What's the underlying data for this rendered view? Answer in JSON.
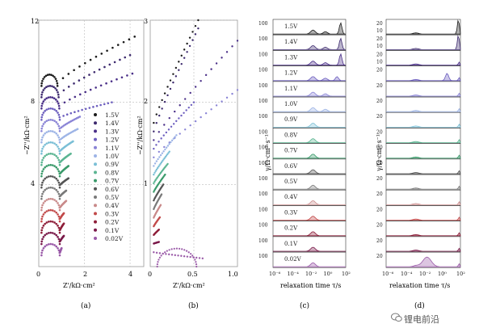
{
  "voltages": [
    "1.5V",
    "1.4V",
    "1.3V",
    "1.2V",
    "1.1V",
    "1.0V",
    "0.9V",
    "0.8V",
    "0.7V",
    "0.6V",
    "0.5V",
    "0.4V",
    "0.3V",
    "0.2V",
    "0.1V",
    "0.02V"
  ],
  "colors": [
    "#1b1b1b",
    "#3d2a6e",
    "#4a2f88",
    "#6d5fbf",
    "#8a84d6",
    "#9db4e6",
    "#7bbfd6",
    "#5bb592",
    "#3a9a6a",
    "#555555",
    "#7a7a7a",
    "#c98a8a",
    "#c24a4a",
    "#8e1f3a",
    "#7a1a4a",
    "#9a5aa8"
  ],
  "panels": {
    "a": {
      "label": "(a)",
      "xlabel": "Z'/kΩ·cm²",
      "ylabel": "−Z''/kΩ·cm²",
      "xticks": [
        "0",
        "2",
        "4"
      ],
      "yticks": [
        "4",
        "8",
        "12"
      ],
      "xlim": [
        0,
        4.6
      ],
      "ylim": [
        0,
        12
      ]
    },
    "b": {
      "label": "(b)",
      "xlabel": "Z'/kΩ·cm²",
      "ylabel": "−Z''/kΩ·cm²",
      "xticks": [
        "0",
        "0.5",
        "1.0"
      ],
      "yticks": [
        "1",
        "2",
        "3"
      ],
      "xlim": [
        0,
        1.0
      ],
      "ylim": [
        0,
        3
      ]
    },
    "c": {
      "label": "(c)",
      "xlabel": "relaxation time τ/s",
      "ylabel": "γ/Ω·cm²·s⁻¹",
      "xticks": [
        "10⁻⁶",
        "10⁻⁴",
        "10⁻²",
        "10⁰",
        "10²"
      ],
      "ytick": "100"
    },
    "d": {
      "label": "(d)",
      "xlabel": "relaxation time τ/s",
      "ylabel": "γ/Ω·cm²·s⁻¹",
      "xticks": [
        "10⁻⁶",
        "10⁻⁴",
        "10⁻²",
        "10⁰",
        "10²"
      ],
      "yticks": [
        "20",
        "10"
      ]
    }
  },
  "watermark": "锂电前沿",
  "chart_data": [
    {
      "type": "scatter",
      "panel": "a",
      "title": "",
      "xlabel": "Z'/kΩ·cm²",
      "ylabel": "−Z''/kΩ·cm²",
      "xlim": [
        0,
        4.6
      ],
      "ylim": [
        0,
        12
      ],
      "note_values_approx": true,
      "series": [
        {
          "name": "1.5V",
          "arc_end": 0.7,
          "arc_h": 0.55,
          "offset": 8.8,
          "tail_to": [
            4.2,
            11.2
          ]
        },
        {
          "name": "1.4V",
          "arc_end": 0.75,
          "arc_h": 0.55,
          "offset": 8.25,
          "tail_to": [
            4.0,
            10.3
          ]
        },
        {
          "name": "1.3V",
          "arc_end": 0.78,
          "arc_h": 0.55,
          "offset": 7.7,
          "tail_to": [
            4.1,
            9.4
          ]
        },
        {
          "name": "1.2V",
          "arc_end": 0.8,
          "arc_h": 0.55,
          "offset": 7.15,
          "tail_to": [
            3.2,
            8.0
          ]
        },
        {
          "name": "1.1V",
          "arc_end": 0.8,
          "arc_h": 0.55,
          "offset": 6.6,
          "tail_to": [
            1.8,
            7.3
          ]
        },
        {
          "name": "1.0V",
          "arc_end": 0.8,
          "arc_h": 0.55,
          "offset": 6.05,
          "tail_to": [
            1.7,
            6.7
          ]
        },
        {
          "name": "0.9V",
          "arc_end": 0.8,
          "arc_h": 0.55,
          "offset": 5.5,
          "tail_to": [
            1.5,
            6.1
          ]
        },
        {
          "name": "0.8V",
          "arc_end": 0.8,
          "arc_h": 0.55,
          "offset": 4.95,
          "tail_to": [
            1.4,
            5.5
          ]
        },
        {
          "name": "0.7V",
          "arc_end": 0.8,
          "arc_h": 0.55,
          "offset": 4.4,
          "tail_to": [
            1.3,
            4.9
          ]
        },
        {
          "name": "0.6V",
          "arc_end": 0.8,
          "arc_h": 0.55,
          "offset": 3.85,
          "tail_to": [
            1.3,
            4.3
          ]
        },
        {
          "name": "0.5V",
          "arc_end": 0.8,
          "arc_h": 0.55,
          "offset": 3.3,
          "tail_to": [
            1.2,
            3.7
          ]
        },
        {
          "name": "0.4V",
          "arc_end": 0.8,
          "arc_h": 0.55,
          "offset": 2.75,
          "tail_to": [
            1.2,
            3.2
          ]
        },
        {
          "name": "0.3V",
          "arc_end": 0.8,
          "arc_h": 0.55,
          "offset": 2.2,
          "tail_to": [
            1.1,
            2.6
          ]
        },
        {
          "name": "0.2V",
          "arc_end": 0.8,
          "arc_h": 0.55,
          "offset": 1.65,
          "tail_to": [
            1.1,
            2.1
          ]
        },
        {
          "name": "0.1V",
          "arc_end": 0.8,
          "arc_h": 0.55,
          "offset": 1.1,
          "tail_to": [
            1.1,
            1.5
          ]
        },
        {
          "name": "0.02V",
          "arc_end": 0.8,
          "arc_h": 0.55,
          "offset": 0.55,
          "tail_to": [
            1.0,
            0.9
          ]
        }
      ]
    },
    {
      "type": "scatter",
      "panel": "b",
      "title": "",
      "xlabel": "Z'/kΩ·cm²",
      "ylabel": "−Z''/kΩ·cm²",
      "xlim": [
        0,
        1.0
      ],
      "ylim": [
        0,
        3
      ],
      "note_values_approx": true
    },
    {
      "type": "line",
      "panel": "c",
      "title": "",
      "xlabel": "relaxation time τ/s",
      "ylabel": "γ/Ω·cm²·s⁻¹",
      "x_log_range": [
        -6,
        2
      ],
      "series_names": [
        "1.5V",
        "1.4V",
        "1.3V",
        "1.2V",
        "1.1V",
        "1.0V",
        "0.9V",
        "0.8V",
        "0.7V",
        "0.6V",
        "0.5V",
        "0.4V",
        "0.3V",
        "0.2V",
        "0.1V",
        "0.02V"
      ],
      "row_ytick": "100",
      "note_values_approx": true
    },
    {
      "type": "line",
      "panel": "d",
      "title": "",
      "xlabel": "relaxation time τ/s",
      "ylabel": "γ/Ω·cm²·s⁻¹",
      "x_log_range": [
        -6,
        2
      ],
      "row_yticks": [
        "20",
        "10"
      ],
      "note_values_approx": true
    }
  ]
}
